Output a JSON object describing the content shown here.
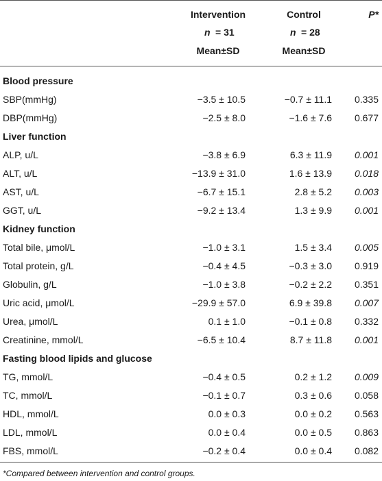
{
  "table": {
    "header": {
      "columns": [
        {
          "title": "Intervention",
          "n_symbol": "n",
          "n_value": "= 31",
          "stat": "Mean±SD"
        },
        {
          "title": "Control",
          "n_symbol": "n",
          "n_value": "= 28",
          "stat": "Mean±SD"
        }
      ],
      "p": "P*"
    },
    "sections": [
      {
        "title": "Blood pressure",
        "rows": [
          {
            "label": "SBP(mmHg)",
            "intervention": "−3.5 ± 10.5",
            "control": "−0.7 ± 11.1",
            "p": "0.335",
            "italic": false
          },
          {
            "label": "DBP(mmHg)",
            "intervention": "−2.5 ± 8.0",
            "control": "−1.6 ± 7.6",
            "p": "0.677",
            "italic": false
          }
        ]
      },
      {
        "title": "Liver function",
        "rows": [
          {
            "label": "ALP, u/L",
            "intervention": "−3.8 ± 6.9",
            "control": "6.3 ± 11.9",
            "p": "0.001",
            "italic": true
          },
          {
            "label": "ALT, u/L",
            "intervention": "−13.9 ± 31.0",
            "control": "1.6 ± 13.9",
            "p": "0.018",
            "italic": true
          },
          {
            "label": "AST, u/L",
            "intervention": "−6.7 ± 15.1",
            "control": "2.8 ± 5.2",
            "p": "0.003",
            "italic": true
          },
          {
            "label": "GGT, u/L",
            "intervention": "−9.2 ± 13.4",
            "control": "1.3 ± 9.9",
            "p": "0.001",
            "italic": true
          }
        ]
      },
      {
        "title": "Kidney function",
        "rows": [
          {
            "label": "Total bile, μmol/L",
            "intervention": "−1.0 ± 3.1",
            "control": "1.5 ± 3.4",
            "p": "0.005",
            "italic": true
          },
          {
            "label": "Total protein, g/L",
            "intervention": "−0.4 ± 4.5",
            "control": "−0.3 ± 3.0",
            "p": "0.919",
            "italic": false
          },
          {
            "label": "Globulin, g/L",
            "intervention": "−1.0 ± 3.8",
            "control": "−0.2 ± 2.2",
            "p": "0.351",
            "italic": false
          },
          {
            "label": "Uric acid, μmol/L",
            "intervention": "−29.9 ± 57.0",
            "control": "6.9 ± 39.8",
            "p": "0.007",
            "italic": true
          },
          {
            "label": "Urea, μmol/L",
            "intervention": "0.1 ± 1.0",
            "control": "−0.1 ± 0.8",
            "p": "0.332",
            "italic": false
          },
          {
            "label": "Creatinine, mmol/L",
            "intervention": "−6.5 ± 10.4",
            "control": "8.7 ± 11.8",
            "p": "0.001",
            "italic": true
          }
        ]
      },
      {
        "title": "Fasting blood lipids and glucose",
        "rows": [
          {
            "label": "TG, mmol/L",
            "intervention": "−0.4 ± 0.5",
            "control": "0.2 ± 1.2",
            "p": "0.009",
            "italic": true
          },
          {
            "label": "TC, mmol/L",
            "intervention": "−0.1 ± 0.7",
            "control": "0.3 ± 0.6",
            "p": "0.058",
            "italic": false
          },
          {
            "label": "HDL, mmol/L",
            "intervention": "0.0 ± 0.3",
            "control": "0.0 ± 0.2",
            "p": "0.563",
            "italic": false
          },
          {
            "label": "LDL, mmol/L",
            "intervention": "0.0 ± 0.4",
            "control": "0.0 ± 0.5",
            "p": "0.863",
            "italic": false
          },
          {
            "label": "FBS, mmol/L",
            "intervention": "−0.2 ± 0.4",
            "control": "0.0 ± 0.4",
            "p": "0.082",
            "italic": false
          }
        ]
      }
    ],
    "footnote": "*Compared between intervention and control groups."
  }
}
